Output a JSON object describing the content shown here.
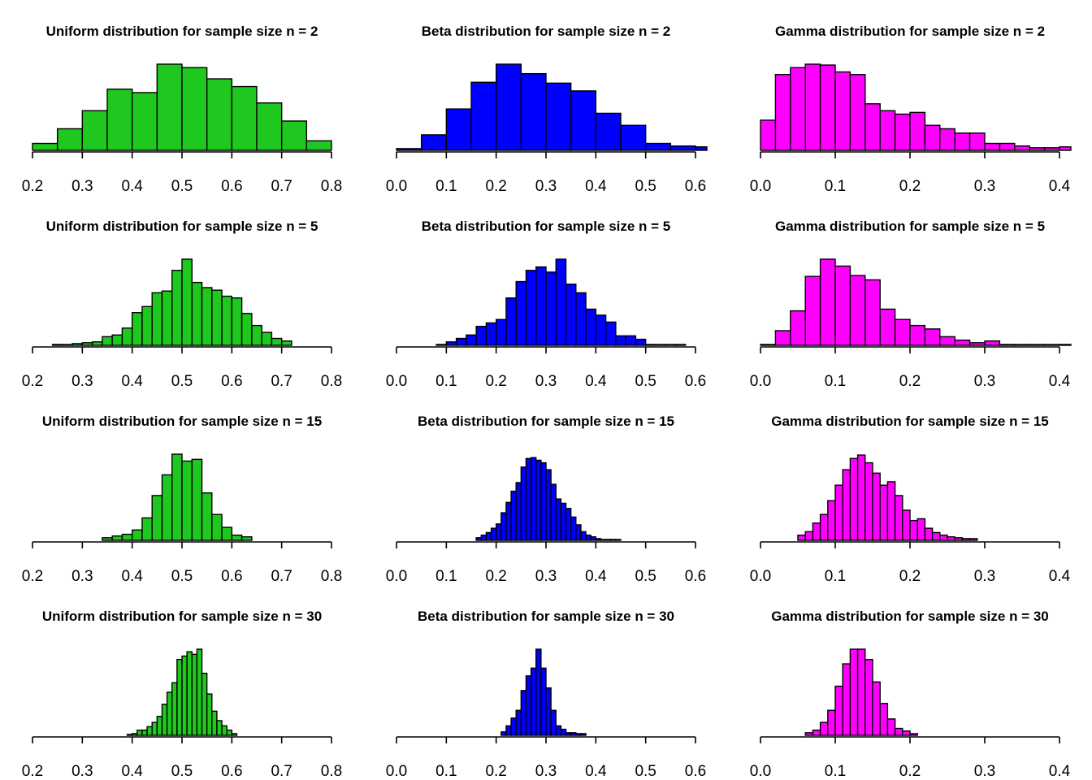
{
  "chart_data": [
    {
      "type": "bar",
      "title": "Uniform  distribution for sample size n = 2",
      "color": "#1fc81f",
      "xlim": [
        0.2,
        0.8
      ],
      "ticks": [
        "0.2",
        "0.3",
        "0.4",
        "0.5",
        "0.6",
        "0.7",
        "0.8"
      ],
      "bin_start": 0.2,
      "bin_width": 0.05,
      "values": [
        0.08,
        0.25,
        0.46,
        0.71,
        0.67,
        1.0,
        0.96,
        0.83,
        0.74,
        0.55,
        0.34,
        0.11
      ]
    },
    {
      "type": "bar",
      "title": "Beta  distribution for sample size n = 2",
      "color": "#0000ff",
      "xlim": [
        0.0,
        0.6
      ],
      "ticks": [
        "0.0",
        "0.1",
        "0.2",
        "0.3",
        "0.4",
        "0.5",
        "0.6"
      ],
      "bin_start": 0.0,
      "bin_width": 0.05,
      "values": [
        0.02,
        0.18,
        0.48,
        0.79,
        1.0,
        0.89,
        0.78,
        0.69,
        0.43,
        0.29,
        0.08,
        0.05,
        0.04
      ]
    },
    {
      "type": "bar",
      "title": "Gamma  distribution for sample size n = 2",
      "color": "#ff00ff",
      "xlim": [
        0.0,
        0.4
      ],
      "ticks": [
        "0.0",
        "0.1",
        "0.2",
        "0.3",
        "0.4"
      ],
      "bin_start": 0.0,
      "bin_width": 0.02,
      "values": [
        0.35,
        0.88,
        0.96,
        1.0,
        0.99,
        0.91,
        0.88,
        0.54,
        0.46,
        0.42,
        0.44,
        0.29,
        0.25,
        0.2,
        0.2,
        0.08,
        0.08,
        0.05,
        0.03,
        0.03,
        0.04
      ]
    },
    {
      "type": "bar",
      "title": "Uniform  distribution for sample size n = 5",
      "color": "#1fc81f",
      "xlim": [
        0.2,
        0.8
      ],
      "ticks": [
        "0.2",
        "0.3",
        "0.4",
        "0.5",
        "0.6",
        "0.7",
        "0.8"
      ],
      "bin_start": 0.24,
      "bin_width": 0.02,
      "values": [
        0.01,
        0.0,
        0.02,
        0.03,
        0.04,
        0.1,
        0.12,
        0.2,
        0.38,
        0.45,
        0.61,
        0.63,
        0.87,
        1.0,
        0.73,
        0.67,
        0.64,
        0.57,
        0.55,
        0.37,
        0.23,
        0.15,
        0.08,
        0.05
      ]
    },
    {
      "type": "bar",
      "title": "Beta  distribution for sample size n = 5",
      "color": "#0000ff",
      "xlim": [
        0.0,
        0.6
      ],
      "ticks": [
        "0.0",
        "0.1",
        "0.2",
        "0.3",
        "0.4",
        "0.5",
        "0.6"
      ],
      "bin_start": 0.08,
      "bin_width": 0.02,
      "values": [
        0.01,
        0.04,
        0.08,
        0.12,
        0.22,
        0.26,
        0.3,
        0.55,
        0.74,
        0.87,
        0.91,
        0.85,
        1.0,
        0.71,
        0.61,
        0.42,
        0.35,
        0.27,
        0.11,
        0.11,
        0.07,
        0.01,
        0.0,
        0.0,
        0.01
      ]
    },
    {
      "type": "bar",
      "title": "Gamma  distribution for sample size n = 5",
      "color": "#ff00ff",
      "xlim": [
        0.0,
        0.4
      ],
      "ticks": [
        "0.0",
        "0.1",
        "0.2",
        "0.3",
        "0.4"
      ],
      "bin_start": 0.0,
      "bin_width": 0.02,
      "values": [
        0.01,
        0.17,
        0.4,
        0.8,
        1.0,
        0.92,
        0.81,
        0.76,
        0.42,
        0.3,
        0.23,
        0.19,
        0.1,
        0.06,
        0.03,
        0.05,
        0.01,
        0.0,
        0.0,
        0.0,
        0.01
      ]
    },
    {
      "type": "bar",
      "title": "Uniform  distribution for sample size n = 15",
      "color": "#1fc81f",
      "xlim": [
        0.2,
        0.8
      ],
      "ticks": [
        "0.2",
        "0.3",
        "0.4",
        "0.5",
        "0.6",
        "0.7",
        "0.8"
      ],
      "bin_start": 0.34,
      "bin_width": 0.02,
      "values": [
        0.03,
        0.05,
        0.07,
        0.12,
        0.26,
        0.52,
        0.76,
        1.0,
        0.92,
        0.94,
        0.55,
        0.3,
        0.15,
        0.06,
        0.04
      ]
    },
    {
      "type": "bar",
      "title": "Beta  distribution for sample size n = 15",
      "color": "#0000ff",
      "xlim": [
        0.0,
        0.6
      ],
      "ticks": [
        "0.0",
        "0.1",
        "0.2",
        "0.3",
        "0.4",
        "0.5",
        "0.6"
      ],
      "bin_start": 0.16,
      "bin_width": 0.01,
      "values": [
        0.03,
        0.06,
        0.09,
        0.14,
        0.19,
        0.32,
        0.44,
        0.57,
        0.67,
        0.85,
        0.95,
        0.96,
        0.93,
        0.9,
        0.82,
        0.65,
        0.48,
        0.43,
        0.37,
        0.27,
        0.18,
        0.1,
        0.06,
        0.04,
        0.02,
        0.01,
        0.01,
        0.01,
        0.0
      ]
    },
    {
      "type": "bar",
      "title": "Gamma  distribution for sample size n = 15",
      "color": "#ff00ff",
      "xlim": [
        0.0,
        0.4
      ],
      "ticks": [
        "0.0",
        "0.1",
        "0.2",
        "0.3",
        "0.4"
      ],
      "bin_start": 0.05,
      "bin_width": 0.01,
      "values": [
        0.06,
        0.1,
        0.2,
        0.3,
        0.46,
        0.64,
        0.82,
        0.95,
        0.99,
        0.9,
        0.78,
        0.64,
        0.68,
        0.52,
        0.35,
        0.23,
        0.25,
        0.14,
        0.09,
        0.06,
        0.04,
        0.03,
        0.02,
        0.02
      ]
    },
    {
      "type": "bar",
      "title": "Uniform  distribution for sample size n = 30",
      "color": "#1fc81f",
      "xlim": [
        0.2,
        0.8
      ],
      "ticks": [
        "0.2",
        "0.3",
        "0.4",
        "0.5",
        "0.6",
        "0.7",
        "0.8"
      ],
      "bin_start": 0.39,
      "bin_width": 0.01,
      "values": [
        0.01,
        0.02,
        0.06,
        0.06,
        0.1,
        0.15,
        0.22,
        0.36,
        0.5,
        0.61,
        0.88,
        0.92,
        0.97,
        0.94,
        1.0,
        0.72,
        0.48,
        0.28,
        0.17,
        0.11,
        0.06,
        0.02
      ]
    },
    {
      "type": "bar",
      "title": "Beta  distribution for sample size n = 30",
      "color": "#0000ff",
      "xlim": [
        0.0,
        0.6
      ],
      "ticks": [
        "0.0",
        "0.1",
        "0.2",
        "0.3",
        "0.4",
        "0.5",
        "0.6"
      ],
      "bin_start": 0.21,
      "bin_width": 0.01,
      "values": [
        0.04,
        0.11,
        0.2,
        0.29,
        0.52,
        0.69,
        0.78,
        1.0,
        0.78,
        0.55,
        0.29,
        0.11,
        0.07,
        0.03,
        0.03,
        0.02,
        0.02
      ]
    },
    {
      "type": "bar",
      "title": "Gamma  distribution for sample size n = 30",
      "color": "#ff00ff",
      "xlim": [
        0.0,
        0.4
      ],
      "ticks": [
        "0.0",
        "0.1",
        "0.2",
        "0.3",
        "0.4"
      ],
      "bin_start": 0.06,
      "bin_width": 0.01,
      "values": [
        0.03,
        0.06,
        0.15,
        0.29,
        0.57,
        0.83,
        1.0,
        1.0,
        0.88,
        0.62,
        0.37,
        0.19,
        0.08,
        0.05,
        0.02
      ]
    }
  ]
}
